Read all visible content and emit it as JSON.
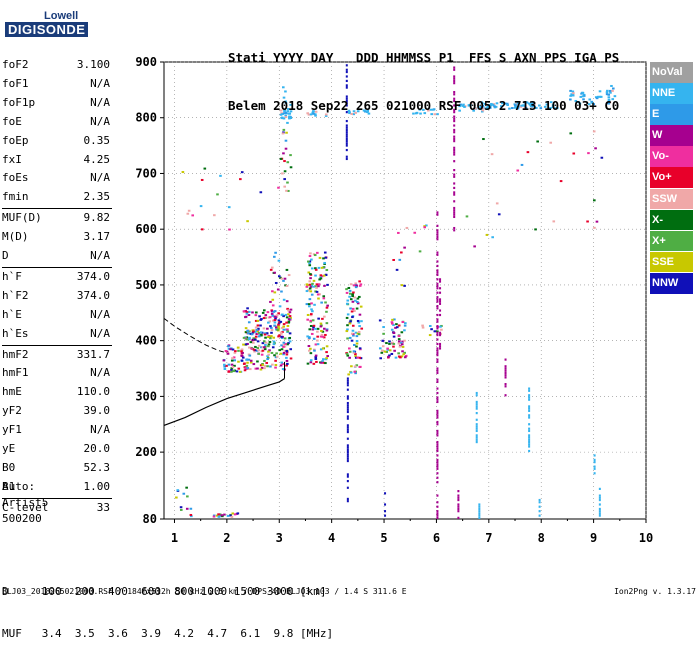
{
  "logo": {
    "line1": "Lowell",
    "line2": "DIGISONDE"
  },
  "header": {
    "line1": "Stati YYYY DAY   DDD HHMMSS P1  FFS S AXN PPS IGA PS",
    "line2": "Belem 2018 Sep22 265 021000 RSF 005 2 713 100 03+ C0"
  },
  "params": [
    {
      "name": "foF2",
      "value": "3.100"
    },
    {
      "name": "foF1",
      "value": "N/A"
    },
    {
      "name": "foF1p",
      "value": "N/A"
    },
    {
      "name": "foE",
      "value": "N/A"
    },
    {
      "name": "foEp",
      "value": "0.35"
    },
    {
      "name": "fxI",
      "value": "4.25"
    },
    {
      "name": "foEs",
      "value": "N/A"
    },
    {
      "name": "fmin",
      "value": "2.35"
    },
    {
      "name": "MUF(D)",
      "value": "9.82"
    },
    {
      "name": "M(D)",
      "value": "3.17"
    },
    {
      "name": "D",
      "value": "N/A"
    },
    {
      "name": "h`F",
      "value": "374.0"
    },
    {
      "name": "h`F2",
      "value": "374.0"
    },
    {
      "name": "h`E",
      "value": "N/A"
    },
    {
      "name": "h`Es",
      "value": "N/A"
    },
    {
      "name": "hmF2",
      "value": "331.7"
    },
    {
      "name": "hmF1",
      "value": "N/A"
    },
    {
      "name": "hmE",
      "value": "110.0"
    },
    {
      "name": "yF2",
      "value": "39.0"
    },
    {
      "name": "yF1",
      "value": "N/A"
    },
    {
      "name": "yE",
      "value": "20.0"
    },
    {
      "name": "B0",
      "value": "52.3"
    },
    {
      "name": "B1",
      "value": "1.00"
    },
    {
      "name": "C-level",
      "value": "33"
    }
  ],
  "auto": {
    "line1": "Auto:",
    "line2": "Artist5",
    "line3": "500200"
  },
  "dmuf": {
    "d_line": "D     100  200  400  600  800 1000 1500 3000 [km]",
    "muf_line": "MUF   3.4  3.5  3.6  3.9  4.2  4.7  6.1  9.8 [MHz]"
  },
  "footer": "BLJ03_2018265021000.RSF / 184fx512h 50 kHz 2.5 km / DPS-4D BLJ03 103 / 1.4 S 311.6 E",
  "version": "Ion2Png v. 1.3.17",
  "legend": [
    {
      "label": "NoVal",
      "color": "#a0a0a0"
    },
    {
      "label": "NNE",
      "color": "#35b4ef"
    },
    {
      "label": "E",
      "color": "#2e9ae8"
    },
    {
      "label": "W",
      "color": "#a6008f"
    },
    {
      "label": "Vo-",
      "color": "#ef2e9f"
    },
    {
      "label": "Vo+",
      "color": "#e8002a"
    },
    {
      "label": "SSW",
      "color": "#f0a8a8"
    },
    {
      "label": "X-",
      "color": "#006e10"
    },
    {
      "label": "X+",
      "color": "#4fae44"
    },
    {
      "label": "SSE",
      "color": "#c8c800"
    },
    {
      "label": "NNW",
      "color": "#1010b8"
    }
  ],
  "chart_data": {
    "type": "scatter",
    "title": "",
    "xlabel": "",
    "ylabel": "",
    "xlim": [
      0.8,
      10
    ],
    "ylim": [
      80,
      900
    ],
    "xticks": [
      1,
      2,
      3,
      4,
      5,
      6,
      7,
      8,
      9,
      10
    ],
    "yticks": [
      80,
      200,
      300,
      400,
      500,
      600,
      700,
      800,
      900
    ],
    "grid": "dotted",
    "legend_position": "right",
    "profile_solid": [
      [
        0.8,
        248
      ],
      [
        1.2,
        262
      ],
      [
        1.6,
        280
      ],
      [
        2.0,
        296
      ],
      [
        2.4,
        308
      ],
      [
        2.8,
        320
      ],
      [
        3.0,
        326
      ],
      [
        3.1,
        332
      ]
    ],
    "profile_dashed": [
      [
        0.8,
        440
      ],
      [
        1.0,
        426
      ],
      [
        1.3,
        408
      ],
      [
        1.6,
        392
      ],
      [
        1.85,
        382
      ],
      [
        2.0,
        378
      ]
    ],
    "echo_clusters": [
      {
        "x": [
          1.9,
          2.4
        ],
        "y": [
          345,
          395
        ],
        "n": 60
      },
      {
        "x": [
          2.3,
          3.2
        ],
        "y": [
          350,
          460
        ],
        "n": 260
      },
      {
        "x": [
          2.8,
          3.2
        ],
        "y": [
          420,
          560
        ],
        "n": 40
      },
      {
        "x": [
          3.5,
          3.9
        ],
        "y": [
          360,
          560
        ],
        "n": 150
      },
      {
        "x": [
          4.25,
          4.55
        ],
        "y": [
          340,
          510
        ],
        "n": 100
      },
      {
        "x": [
          4.9,
          5.4
        ],
        "y": [
          370,
          440
        ],
        "n": 70
      },
      {
        "x": [
          5.7,
          6.1
        ],
        "y": [
          410,
          430
        ],
        "n": 12
      },
      {
        "x": [
          3.0,
          3.2
        ],
        "y": [
          660,
          860
        ],
        "n": 30
      },
      {
        "x": [
          3.0,
          3.2
        ],
        "y": [
          800,
          815
        ],
        "n": 22
      },
      {
        "x": [
          3.5,
          3.9
        ],
        "y": [
          805,
          815
        ],
        "n": 12
      },
      {
        "x": [
          4.3,
          4.7
        ],
        "y": [
          808,
          816
        ],
        "n": 14
      },
      {
        "x": [
          5.5,
          6.0
        ],
        "y": [
          808,
          818
        ],
        "n": 14
      },
      {
        "x": [
          6.4,
          6.9
        ],
        "y": [
          812,
          830
        ],
        "n": 22
      },
      {
        "x": [
          6.8,
          7.6
        ],
        "y": [
          818,
          828
        ],
        "n": 36
      },
      {
        "x": [
          7.6,
          8.3
        ],
        "y": [
          818,
          830
        ],
        "n": 32
      },
      {
        "x": [
          8.5,
          9.3
        ],
        "y": [
          826,
          850
        ],
        "n": 36
      },
      {
        "x": [
          9.2,
          9.4
        ],
        "y": [
          835,
          860
        ],
        "n": 10
      },
      {
        "x": [
          1.1,
          3.2
        ],
        "y": [
          600,
          720
        ],
        "n": 18
      },
      {
        "x": [
          5.0,
          5.8
        ],
        "y": [
          480,
          620
        ],
        "n": 14
      },
      {
        "x": [
          6.4,
          9.2
        ],
        "y": [
          570,
          780
        ],
        "n": 26
      },
      {
        "x": [
          1.6,
          2.2
        ],
        "y": [
          84,
          92
        ],
        "n": 18
      },
      {
        "x": [
          1.0,
          1.3
        ],
        "y": [
          84,
          140
        ],
        "n": 12
      }
    ],
    "vertical_traces": [
      {
        "x": 4.27,
        "y": [
          720,
          900
        ],
        "color": "#1010b8"
      },
      {
        "x": 4.29,
        "y": [
          110,
          340
        ],
        "color": "#1010b8"
      },
      {
        "x": 6.0,
        "y": [
          80,
          640
        ],
        "color": "#a6008f"
      },
      {
        "x": 6.05,
        "y": [
          380,
          520
        ],
        "color": "#a6008f"
      },
      {
        "x": 6.32,
        "y": [
          600,
          900
        ],
        "color": "#a6008f"
      },
      {
        "x": 6.75,
        "y": [
          220,
          310
        ],
        "color": "#35b4ef"
      },
      {
        "x": 6.8,
        "y": [
          84,
          110
        ],
        "color": "#35b4ef"
      },
      {
        "x": 7.95,
        "y": [
          84,
          120
        ],
        "color": "#35b4ef"
      },
      {
        "x": 7.75,
        "y": [
          200,
          330
        ],
        "color": "#35b4ef"
      },
      {
        "x": 9.1,
        "y": [
          84,
          140
        ],
        "color": "#35b4ef"
      },
      {
        "x": 9.0,
        "y": [
          160,
          200
        ],
        "color": "#35b4ef"
      },
      {
        "x": 5.0,
        "y": [
          84,
          130
        ],
        "color": "#1010b8"
      },
      {
        "x": 6.4,
        "y": [
          84,
          140
        ],
        "color": "#a6008f"
      },
      {
        "x": 7.3,
        "y": [
          280,
          370
        ],
        "color": "#a6008f"
      }
    ]
  }
}
